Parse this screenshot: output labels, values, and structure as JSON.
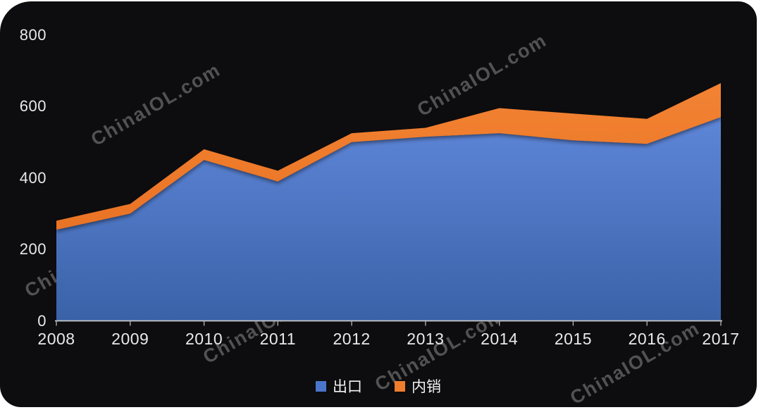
{
  "watermark": {
    "text": "ChinaIOL.com"
  },
  "colors": {
    "panel_background": "#0d0c0e",
    "page_background": "#ffffff",
    "axis_line": "#c9c9c9",
    "tick_label": "#e9e9e9",
    "legend_label": "#f2f2f2",
    "export_gradient_top": "#5e86d8",
    "export_gradient_bottom": "#3a62a8",
    "domestic_gradient_top": "#f28332",
    "domestic_gradient_bottom": "#ea7326"
  },
  "chart_data": {
    "type": "area",
    "stacked": true,
    "title": "",
    "xlabel": "",
    "ylabel": "",
    "grid": false,
    "legend_position": "bottom",
    "x": [
      "2008",
      "2009",
      "2010",
      "2011",
      "2012",
      "2013",
      "2014",
      "2015",
      "2016",
      "2017"
    ],
    "series": [
      {
        "name": "出口",
        "color": "#4a75cb",
        "values": [
          255,
          300,
          450,
          390,
          500,
          515,
          525,
          505,
          495,
          570
        ]
      },
      {
        "name": "内销",
        "color": "#ef7d2e",
        "values": [
          25,
          27,
          30,
          30,
          25,
          25,
          70,
          75,
          70,
          95
        ]
      }
    ],
    "stacked_totals": [
      280,
      327,
      480,
      420,
      525,
      540,
      595,
      580,
      565,
      665
    ],
    "yticks": [
      0,
      200,
      400,
      600,
      800
    ],
    "ylim": [
      0,
      800
    ]
  }
}
